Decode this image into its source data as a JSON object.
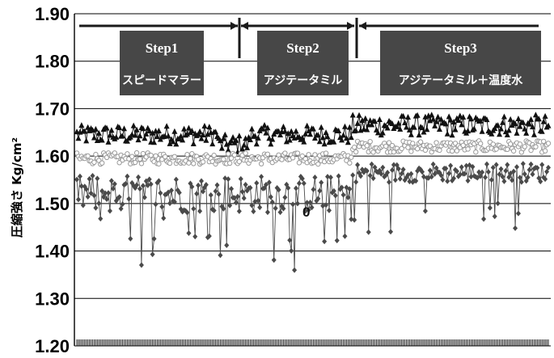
{
  "chart_data": {
    "type": "line",
    "ylabel": "圧縮強さ Kg/cm²",
    "ylim": [
      1.2,
      1.9
    ],
    "y_ticks": [
      "1.90",
      "1.80",
      "1.70",
      "1.60",
      "1.50",
      "1.40",
      "1.30",
      "1.20"
    ],
    "grid": true,
    "legend": "none",
    "annotation": "0",
    "steps": [
      {
        "title": "Step1",
        "subtitle": "スピードマラー"
      },
      {
        "title": "Step2",
        "subtitle": "アジテータミル"
      },
      {
        "title": "Step3",
        "subtitle": "アジテータミル＋温度水"
      }
    ],
    "x_count": 300,
    "series": [
      {
        "marker": "triangle",
        "color": "#111111",
        "segments": [
          {
            "from": 0,
            "to": 90,
            "mean": 1.645,
            "spread": 0.02
          },
          {
            "from": 90,
            "to": 110,
            "mean": 1.625,
            "spread": 0.02
          },
          {
            "from": 110,
            "to": 175,
            "mean": 1.645,
            "spread": 0.02
          },
          {
            "from": 175,
            "to": 300,
            "mean": 1.665,
            "spread": 0.022
          }
        ]
      },
      {
        "marker": "circle",
        "color": "#9a9a9a",
        "segments": [
          {
            "from": 0,
            "to": 175,
            "mean": 1.595,
            "spread": 0.012
          },
          {
            "from": 175,
            "to": 300,
            "mean": 1.62,
            "spread": 0.012
          }
        ]
      },
      {
        "marker": "diamond",
        "color": "#4a4a4a",
        "segments": [
          {
            "from": 0,
            "to": 175,
            "mean": 1.52,
            "spread": 0.04
          },
          {
            "from": 175,
            "to": 300,
            "mean": 1.565,
            "spread": 0.02
          }
        ]
      }
    ],
    "colors": {
      "step_box": "#474747",
      "grid": "#000000",
      "arrow": "#1a1a1a"
    }
  }
}
